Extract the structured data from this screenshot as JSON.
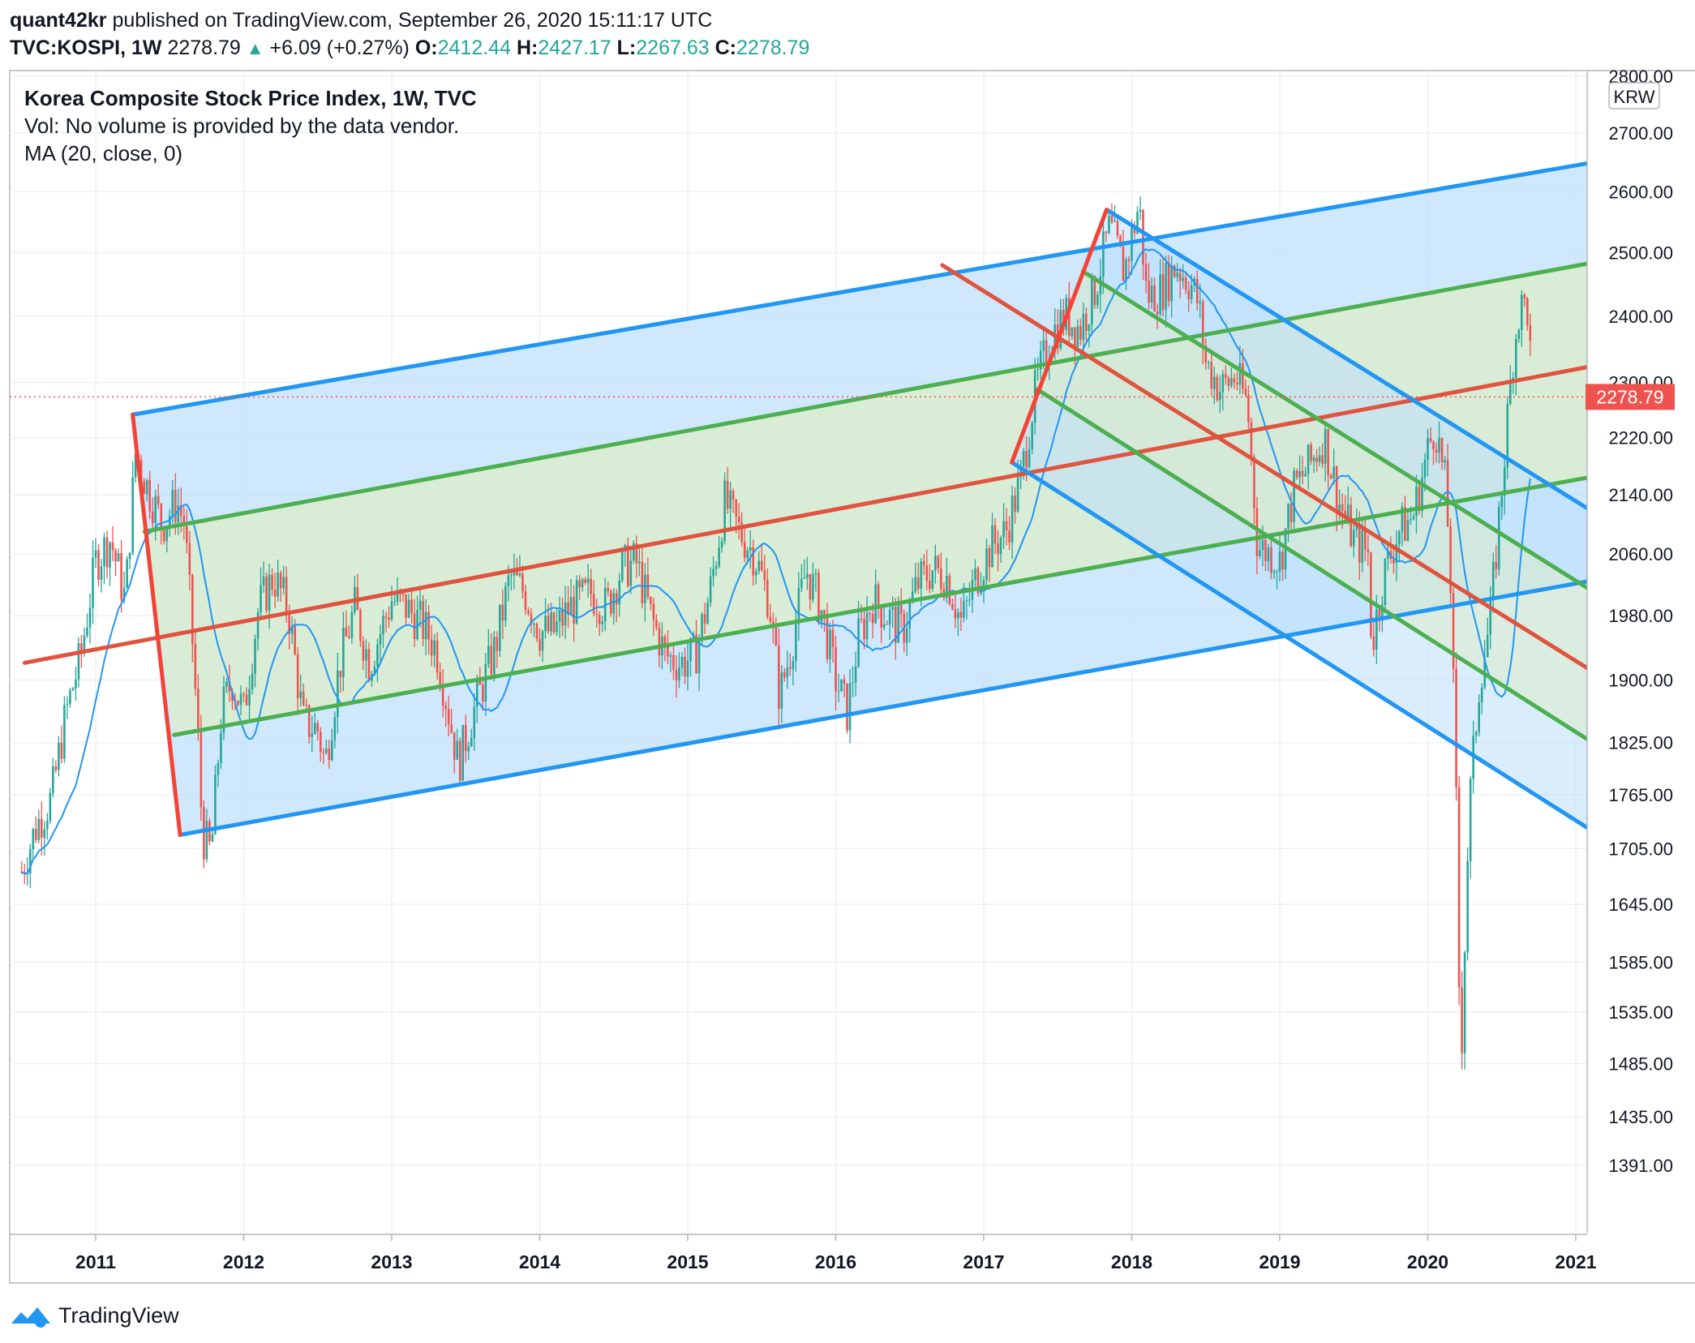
{
  "header": {
    "publisher": "quant42kr",
    "published_text": "published on TradingView.com, September 26, 2020 15:11:17 UTC",
    "symbol": "TVC:KOSPI, 1W",
    "price": "2278.79",
    "change": "+6.09 (+0.27%)",
    "open_label": "O:",
    "open": "2412.44",
    "high_label": "H:",
    "high": "2427.17",
    "low_label": "L:",
    "low": "2267.63",
    "close_label": "C:",
    "close": "2278.79"
  },
  "legend": {
    "title": "Korea Composite Stock Price Index, 1W, TVC",
    "volume": "Vol: No volume is provided by the data vendor.",
    "ma": "MA (20, close, 0)"
  },
  "footer": {
    "brand": "TradingView"
  },
  "colors": {
    "up": "#26a69a",
    "down": "#ef5350",
    "ma": "#2196f3",
    "channel_blue": "#2196f3",
    "channel_green": "#4caf50",
    "median_red": "#e0533f",
    "pitch_red": "#f44336",
    "fill_blue": "#bbdefb",
    "fill_green": "#dcedc8"
  },
  "chart_data": {
    "type": "candlestick",
    "title": "Korea Composite Stock Price Index, 1W, TVC",
    "currency": "KRW",
    "y_scale": "log",
    "y_ticks": [
      "2800.00",
      "2700.00",
      "2600.00",
      "2500.00",
      "2400.00",
      "2300.00",
      "2220.00",
      "2140.00",
      "2060.00",
      "1980.00",
      "1900.00",
      "1825.00",
      "1765.00",
      "1705.00",
      "1645.00",
      "1585.00",
      "1535.00",
      "1485.00",
      "1435.00",
      "1391.00"
    ],
    "x_ticks": [
      "2011",
      "2012",
      "2013",
      "2014",
      "2015",
      "2016",
      "2017",
      "2018",
      "2019",
      "2020",
      "2021"
    ],
    "last_price_label": "2278.79",
    "series_points": [
      [
        2010.5,
        1680
      ],
      [
        2010.6,
        1730
      ],
      [
        2010.7,
        1760
      ],
      [
        2010.8,
        1860
      ],
      [
        2010.9,
        1930
      ],
      [
        2011.0,
        2050
      ],
      [
        2011.1,
        2080
      ],
      [
        2011.2,
        2000
      ],
      [
        2011.27,
        2200
      ],
      [
        2011.35,
        2150
      ],
      [
        2011.45,
        2100
      ],
      [
        2011.55,
        2130
      ],
      [
        2011.6,
        2100
      ],
      [
        2011.65,
        1960
      ],
      [
        2011.7,
        1800
      ],
      [
        2011.72,
        1720
      ],
      [
        2011.78,
        1700
      ],
      [
        2011.85,
        1860
      ],
      [
        2011.92,
        1900
      ],
      [
        2012.0,
        1860
      ],
      [
        2012.1,
        1990
      ],
      [
        2012.2,
        2030
      ],
      [
        2012.3,
        1990
      ],
      [
        2012.4,
        1850
      ],
      [
        2012.5,
        1840
      ],
      [
        2012.55,
        1800
      ],
      [
        2012.65,
        1920
      ],
      [
        2012.75,
        1990
      ],
      [
        2012.85,
        1920
      ],
      [
        2013.0,
        2000
      ],
      [
        2013.1,
        1990
      ],
      [
        2013.2,
        1970
      ],
      [
        2013.3,
        1940
      ],
      [
        2013.45,
        1800
      ],
      [
        2013.55,
        1860
      ],
      [
        2013.7,
        1940
      ],
      [
        2013.8,
        2030
      ],
      [
        2013.9,
        2010
      ],
      [
        2014.0,
        1960
      ],
      [
        2014.1,
        1960
      ],
      [
        2014.2,
        1990
      ],
      [
        2014.35,
        2010
      ],
      [
        2014.45,
        1990
      ],
      [
        2014.55,
        2040
      ],
      [
        2014.65,
        2050
      ],
      [
        2014.75,
        1980
      ],
      [
        2014.85,
        1930
      ],
      [
        2014.95,
        1920
      ],
      [
        2015.05,
        1930
      ],
      [
        2015.15,
        2010
      ],
      [
        2015.25,
        2130
      ],
      [
        2015.35,
        2090
      ],
      [
        2015.45,
        2060
      ],
      [
        2015.55,
        2000
      ],
      [
        2015.62,
        1880
      ],
      [
        2015.7,
        1940
      ],
      [
        2015.8,
        2040
      ],
      [
        2015.9,
        1990
      ],
      [
        2016.0,
        1900
      ],
      [
        2016.08,
        1860
      ],
      [
        2016.15,
        1950
      ],
      [
        2016.25,
        2000
      ],
      [
        2016.35,
        1980
      ],
      [
        2016.45,
        1960
      ],
      [
        2016.55,
        2020
      ],
      [
        2016.65,
        2040
      ],
      [
        2016.75,
        2030
      ],
      [
        2016.85,
        1970
      ],
      [
        2016.95,
        2030
      ],
      [
        2017.05,
        2070
      ],
      [
        2017.15,
        2090
      ],
      [
        2017.25,
        2160
      ],
      [
        2017.35,
        2290
      ],
      [
        2017.45,
        2370
      ],
      [
        2017.55,
        2400
      ],
      [
        2017.65,
        2380
      ],
      [
        2017.75,
        2440
      ],
      [
        2017.85,
        2540
      ],
      [
        2017.95,
        2470
      ],
      [
        2018.05,
        2580
      ],
      [
        2018.1,
        2430
      ],
      [
        2018.2,
        2440
      ],
      [
        2018.3,
        2480
      ],
      [
        2018.4,
        2450
      ],
      [
        2018.45,
        2420
      ],
      [
        2018.5,
        2330
      ],
      [
        2018.6,
        2290
      ],
      [
        2018.7,
        2310
      ],
      [
        2018.78,
        2270
      ],
      [
        2018.85,
        2070
      ],
      [
        2018.95,
        2060
      ],
      [
        2019.0,
        2050
      ],
      [
        2019.1,
        2150
      ],
      [
        2019.2,
        2180
      ],
      [
        2019.3,
        2220
      ],
      [
        2019.4,
        2130
      ],
      [
        2019.5,
        2080
      ],
      [
        2019.6,
        2060
      ],
      [
        2019.62,
        1940
      ],
      [
        2019.7,
        2030
      ],
      [
        2019.8,
        2090
      ],
      [
        2019.9,
        2110
      ],
      [
        2020.0,
        2200
      ],
      [
        2020.05,
        2240
      ],
      [
        2020.12,
        2150
      ],
      [
        2020.15,
        2050
      ],
      [
        2020.2,
        1700
      ],
      [
        2020.22,
        1460
      ],
      [
        2020.28,
        1750
      ],
      [
        2020.35,
        1900
      ],
      [
        2020.42,
        1970
      ],
      [
        2020.5,
        2150
      ],
      [
        2020.58,
        2350
      ],
      [
        2020.62,
        2410
      ],
      [
        2020.67,
        2420
      ],
      [
        2020.71,
        2280
      ]
    ],
    "ma": {
      "name": "MA (20, close, 0)",
      "period": 20,
      "source": "close"
    },
    "lines": [
      {
        "name": "upper-channel-1",
        "color": "blue",
        "from": [
          2011.25,
          2253
        ],
        "to": [
          2021.25,
          2655
        ]
      },
      {
        "name": "lower-channel-1",
        "color": "blue",
        "from": [
          2011.57,
          1720
        ],
        "to": [
          2021.25,
          2030
        ]
      },
      {
        "name": "upper-green-1",
        "color": "green",
        "from": [
          2011.33,
          2090
        ],
        "to": [
          2021.25,
          2490
        ]
      },
      {
        "name": "lower-green-1",
        "color": "green",
        "from": [
          2011.53,
          1834
        ],
        "to": [
          2021.25,
          2170
        ]
      },
      {
        "name": "median-line-1",
        "color": "red",
        "from": [
          2010.52,
          1921
        ],
        "to": [
          2021.25,
          2330
        ]
      },
      {
        "name": "pitch-handle-1a",
        "color": "red",
        "from": [
          2011.25,
          2253
        ],
        "to": [
          2011.57,
          1720
        ]
      },
      {
        "name": "upper-channel-2",
        "color": "blue",
        "from": [
          2017.83,
          2570
        ],
        "to": [
          2021.25,
          2100
        ]
      },
      {
        "name": "lower-channel-2",
        "color": "blue",
        "from": [
          2017.19,
          2185
        ],
        "to": [
          2021.25,
          1710
        ]
      },
      {
        "name": "upper-green-2",
        "color": "green",
        "from": [
          2017.67,
          2470
        ],
        "to": [
          2021.25,
          1995
        ]
      },
      {
        "name": "lower-green-2",
        "color": "green",
        "from": [
          2017.36,
          2290
        ],
        "to": [
          2021.25,
          1810
        ]
      },
      {
        "name": "median-line-2",
        "color": "red",
        "from": [
          2016.72,
          2480
        ],
        "to": [
          2021.25,
          1895
        ]
      },
      {
        "name": "pitch-handle-2",
        "color": "red",
        "from": [
          2017.19,
          2185
        ],
        "to": [
          2017.83,
          2570
        ]
      }
    ],
    "fills": [
      {
        "name": "blue-zone-1",
        "color": "fill_blue"
      },
      {
        "name": "green-zone-1",
        "color": "fill_green"
      },
      {
        "name": "blue-zone-2",
        "color": "fill_blue"
      },
      {
        "name": "green-zone-2",
        "color": "fill_green"
      }
    ]
  }
}
